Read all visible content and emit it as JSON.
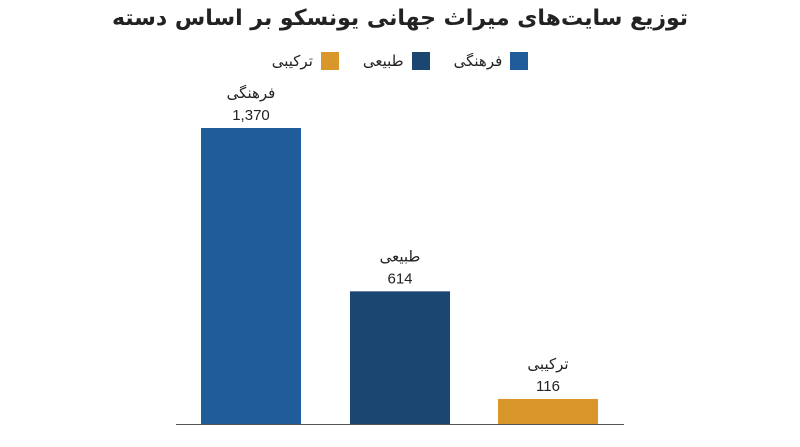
{
  "chart_data": {
    "type": "bar",
    "title": "توزیع سایت‌های میراث جهانی یونسکو بر اساس دسته",
    "categories": [
      "فرهنگی",
      "طبیعی",
      "ترکیبی"
    ],
    "values": [
      1370,
      614,
      116
    ],
    "value_labels": [
      "1,370",
      "614",
      "116"
    ],
    "colors": [
      "#1f5c99",
      "#1b4672",
      "#d9962b"
    ],
    "legend": {
      "placement": "top-center",
      "entries": [
        {
          "label": "فرهنگی",
          "color": "#1f5c99"
        },
        {
          "label": "طبیعی",
          "color": "#1b4672"
        },
        {
          "label": "ترکیبی",
          "color": "#d9962b"
        }
      ]
    },
    "ylim": [
      0,
      1370
    ],
    "grid": false,
    "xlabel": "",
    "ylabel": ""
  }
}
